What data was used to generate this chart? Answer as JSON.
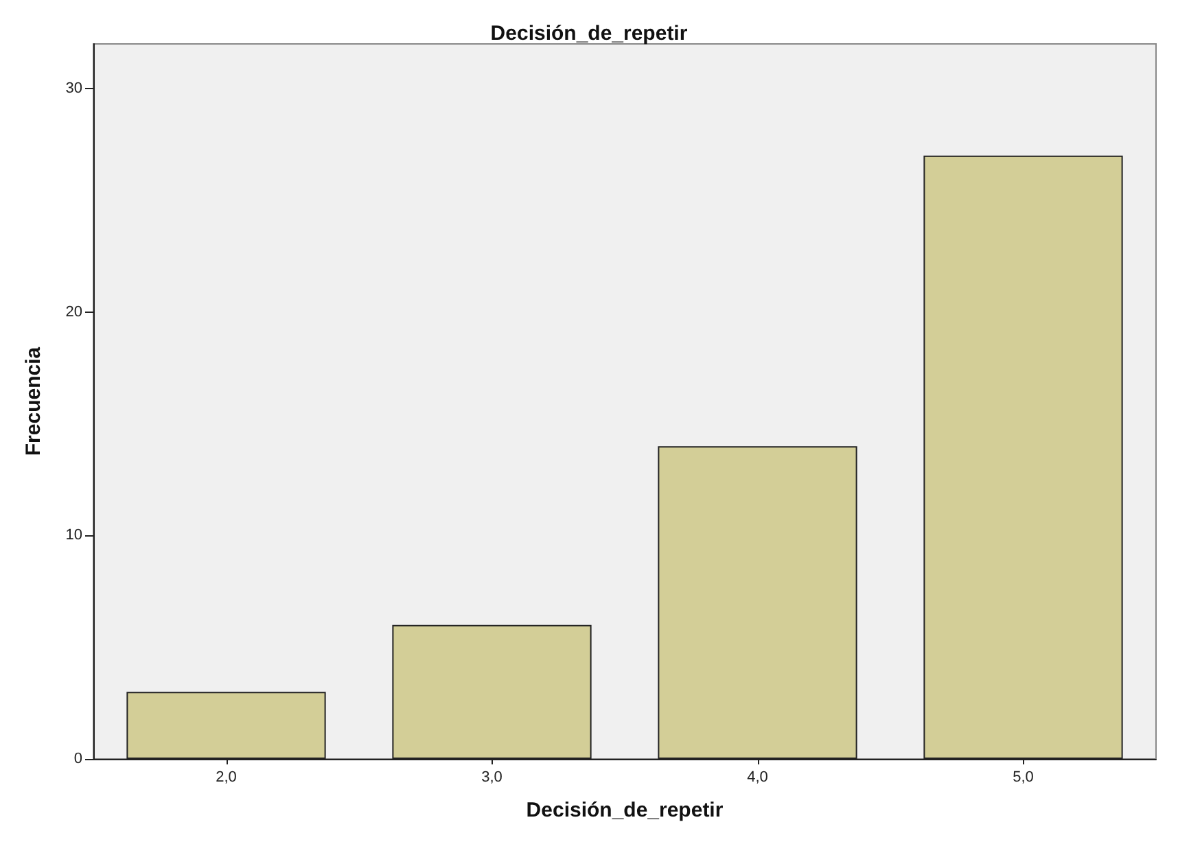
{
  "chart_data": {
    "type": "bar",
    "title": "Decisión_de_repetir",
    "xlabel": "Decisión_de_repetir",
    "ylabel": "Frecuencia",
    "categories": [
      "2,0",
      "3,0",
      "4,0",
      "5,0"
    ],
    "values": [
      3,
      6,
      14,
      27
    ],
    "color": "#d3ce97",
    "ylim": [
      0,
      32
    ],
    "yticks": [
      0,
      10,
      20,
      30
    ],
    "grid": false
  }
}
